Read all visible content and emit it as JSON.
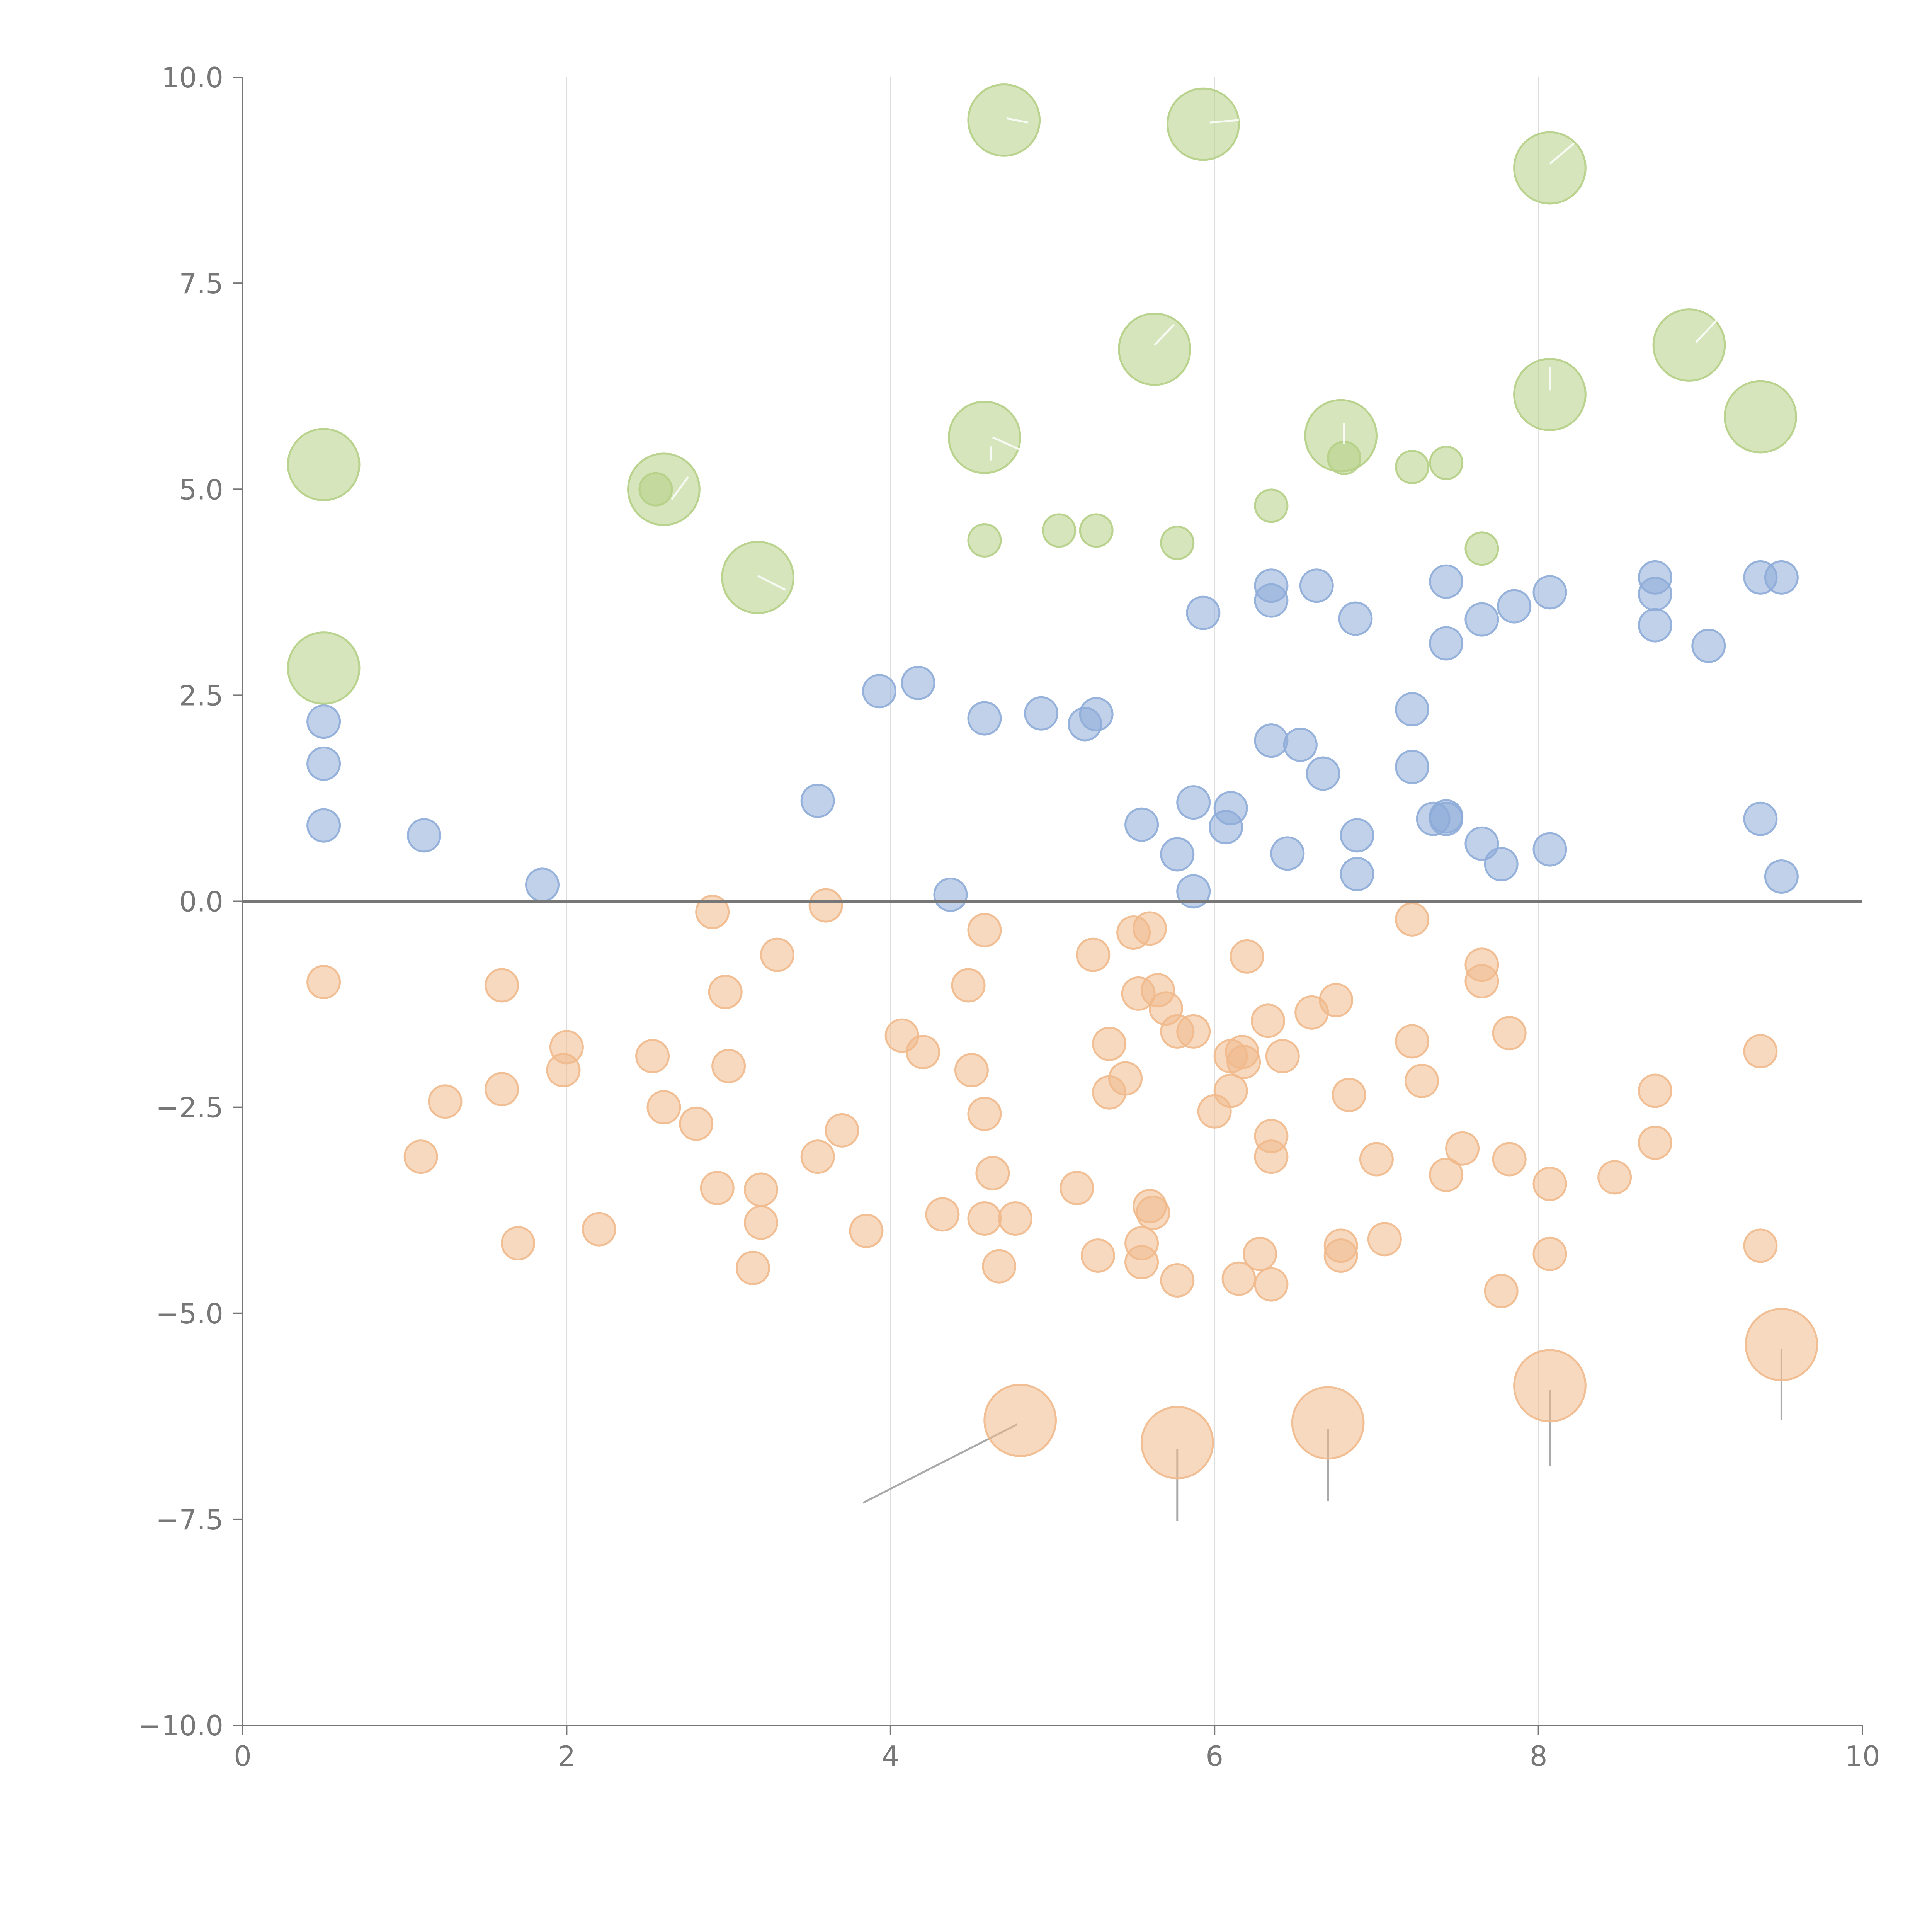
{
  "chart_data": {
    "type": "scatter",
    "title": "",
    "xlabel": "",
    "ylabel": "",
    "xlim": [
      0,
      10
    ],
    "ylim": [
      -10,
      10
    ],
    "x_ticks": [
      0,
      2,
      4,
      6,
      8,
      10
    ],
    "y_ticks": [
      -10,
      -7.5,
      -5,
      -2.5,
      0,
      2.5,
      5,
      7.5,
      10
    ],
    "x_tick_labels": [
      "0",
      "2",
      "4",
      "6",
      "8",
      "10"
    ],
    "y_tick_labels": [
      "−10.0",
      "−7.5",
      "−5.0",
      "−2.5",
      "0.0",
      "2.5",
      "5.0",
      "7.5",
      "10.0"
    ],
    "vertical_gridlines": [
      2,
      4,
      6,
      8
    ],
    "zero_line": 0,
    "bubble_sizes": {
      "small": 1,
      "large": 2.2
    },
    "series": [
      {
        "name": "green",
        "color": "#b5cf85",
        "points": [
          {
            "x": 0.5,
            "y": 5.3,
            "size": "large"
          },
          {
            "x": 0.5,
            "y": 2.83,
            "size": "large"
          },
          {
            "x": 2.6,
            "y": 5.0,
            "size": "large"
          },
          {
            "x": 2.55,
            "y": 5.0,
            "size": "small"
          },
          {
            "x": 3.18,
            "y": 3.93,
            "size": "large"
          },
          {
            "x": 4.7,
            "y": 9.48,
            "size": "large"
          },
          {
            "x": 4.58,
            "y": 5.63,
            "size": "large"
          },
          {
            "x": 4.58,
            "y": 4.38,
            "size": "small"
          },
          {
            "x": 5.04,
            "y": 4.5,
            "size": "small"
          },
          {
            "x": 5.27,
            "y": 4.5,
            "size": "small"
          },
          {
            "x": 5.63,
            "y": 6.7,
            "size": "large"
          },
          {
            "x": 5.77,
            "y": 4.35,
            "size": "small"
          },
          {
            "x": 5.93,
            "y": 9.43,
            "size": "large"
          },
          {
            "x": 6.35,
            "y": 4.8,
            "size": "small"
          },
          {
            "x": 6.78,
            "y": 5.65,
            "size": "large"
          },
          {
            "x": 6.8,
            "y": 5.38,
            "size": "small"
          },
          {
            "x": 7.22,
            "y": 5.27,
            "size": "small"
          },
          {
            "x": 7.43,
            "y": 5.32,
            "size": "small"
          },
          {
            "x": 7.65,
            "y": 4.28,
            "size": "small"
          },
          {
            "x": 8.07,
            "y": 8.9,
            "size": "large"
          },
          {
            "x": 8.07,
            "y": 6.15,
            "size": "large"
          },
          {
            "x": 8.93,
            "y": 6.75,
            "size": "large"
          },
          {
            "x": 9.37,
            "y": 5.88,
            "size": "large"
          }
        ]
      },
      {
        "name": "blue",
        "color": "#8eacd8",
        "points": [
          {
            "x": 0.5,
            "y": 2.18
          },
          {
            "x": 0.5,
            "y": 1.67
          },
          {
            "x": 0.5,
            "y": 0.92
          },
          {
            "x": 1.12,
            "y": 0.8
          },
          {
            "x": 1.85,
            "y": 0.2
          },
          {
            "x": 3.55,
            "y": 1.22
          },
          {
            "x": 3.93,
            "y": 2.55
          },
          {
            "x": 4.17,
            "y": 2.65
          },
          {
            "x": 4.37,
            "y": 0.08
          },
          {
            "x": 4.58,
            "y": 2.22
          },
          {
            "x": 4.93,
            "y": 2.28
          },
          {
            "x": 5.2,
            "y": 2.15
          },
          {
            "x": 5.27,
            "y": 2.27
          },
          {
            "x": 5.55,
            "y": 0.93
          },
          {
            "x": 5.77,
            "y": 0.57
          },
          {
            "x": 5.87,
            "y": 1.2
          },
          {
            "x": 5.87,
            "y": 0.12
          },
          {
            "x": 5.93,
            "y": 3.5
          },
          {
            "x": 6.07,
            "y": 0.9
          },
          {
            "x": 6.1,
            "y": 1.13
          },
          {
            "x": 6.35,
            "y": 3.83
          },
          {
            "x": 6.35,
            "y": 3.65
          },
          {
            "x": 6.35,
            "y": 1.95
          },
          {
            "x": 6.45,
            "y": 0.58
          },
          {
            "x": 6.53,
            "y": 1.9
          },
          {
            "x": 6.63,
            "y": 3.83
          },
          {
            "x": 6.67,
            "y": 1.55
          },
          {
            "x": 6.87,
            "y": 3.43
          },
          {
            "x": 6.88,
            "y": 0.8
          },
          {
            "x": 6.88,
            "y": 0.33
          },
          {
            "x": 7.22,
            "y": 2.33
          },
          {
            "x": 7.22,
            "y": 1.63
          },
          {
            "x": 7.35,
            "y": 1.0
          },
          {
            "x": 7.43,
            "y": 3.88
          },
          {
            "x": 7.43,
            "y": 3.13
          },
          {
            "x": 7.43,
            "y": 1.03
          },
          {
            "x": 7.43,
            "y": 1.0
          },
          {
            "x": 7.65,
            "y": 3.42
          },
          {
            "x": 7.65,
            "y": 0.7
          },
          {
            "x": 7.77,
            "y": 0.45
          },
          {
            "x": 7.85,
            "y": 3.58
          },
          {
            "x": 8.07,
            "y": 3.75
          },
          {
            "x": 8.07,
            "y": 0.63
          },
          {
            "x": 8.72,
            "y": 3.93
          },
          {
            "x": 8.72,
            "y": 3.73
          },
          {
            "x": 8.72,
            "y": 3.35
          },
          {
            "x": 9.05,
            "y": 3.1
          },
          {
            "x": 9.37,
            "y": 3.93
          },
          {
            "x": 9.37,
            "y": 1.0
          },
          {
            "x": 9.5,
            "y": 3.93
          },
          {
            "x": 9.5,
            "y": 0.3
          }
        ]
      },
      {
        "name": "orange",
        "color": "#f0b98c",
        "points": [
          {
            "x": 0.5,
            "y": -0.98
          },
          {
            "x": 1.1,
            "y": -3.1
          },
          {
            "x": 1.25,
            "y": -2.43
          },
          {
            "x": 1.6,
            "y": -1.02
          },
          {
            "x": 1.6,
            "y": -2.28
          },
          {
            "x": 1.7,
            "y": -4.15
          },
          {
            "x": 2.0,
            "y": -1.77
          },
          {
            "x": 1.98,
            "y": -2.05
          },
          {
            "x": 2.2,
            "y": -3.98
          },
          {
            "x": 2.53,
            "y": -1.88
          },
          {
            "x": 2.6,
            "y": -2.5
          },
          {
            "x": 2.8,
            "y": -2.7
          },
          {
            "x": 2.9,
            "y": -0.13
          },
          {
            "x": 2.93,
            "y": -3.48
          },
          {
            "x": 2.98,
            "y": -1.1
          },
          {
            "x": 3.0,
            "y": -2.0
          },
          {
            "x": 3.15,
            "y": -4.45
          },
          {
            "x": 3.2,
            "y": -3.5
          },
          {
            "x": 3.2,
            "y": -3.9
          },
          {
            "x": 3.3,
            "y": -0.65
          },
          {
            "x": 3.55,
            "y": -3.1
          },
          {
            "x": 3.6,
            "y": -0.05
          },
          {
            "x": 3.7,
            "y": -2.78
          },
          {
            "x": 3.85,
            "y": -4.0
          },
          {
            "x": 4.07,
            "y": -1.63
          },
          {
            "x": 4.2,
            "y": -1.83
          },
          {
            "x": 4.32,
            "y": -3.8
          },
          {
            "x": 4.48,
            "y": -1.02
          },
          {
            "x": 4.5,
            "y": -2.05
          },
          {
            "x": 4.58,
            "y": -0.35
          },
          {
            "x": 4.58,
            "y": -2.58
          },
          {
            "x": 4.58,
            "y": -3.85
          },
          {
            "x": 4.63,
            "y": -3.3
          },
          {
            "x": 4.67,
            "y": -4.43
          },
          {
            "x": 4.77,
            "y": -3.85
          },
          {
            "x": 5.15,
            "y": -3.48
          },
          {
            "x": 5.25,
            "y": -0.65
          },
          {
            "x": 5.28,
            "y": -4.3
          },
          {
            "x": 5.35,
            "y": -1.73
          },
          {
            "x": 5.35,
            "y": -2.32
          },
          {
            "x": 5.45,
            "y": -2.15
          },
          {
            "x": 5.5,
            "y": -0.38
          },
          {
            "x": 5.53,
            "y": -1.12
          },
          {
            "x": 5.55,
            "y": -4.15
          },
          {
            "x": 5.55,
            "y": -4.38
          },
          {
            "x": 5.6,
            "y": -0.33
          },
          {
            "x": 5.6,
            "y": -3.7
          },
          {
            "x": 5.62,
            "y": -3.78
          },
          {
            "x": 5.65,
            "y": -1.08
          },
          {
            "x": 5.7,
            "y": -1.3
          },
          {
            "x": 5.77,
            "y": -1.58
          },
          {
            "x": 5.77,
            "y": -4.6
          },
          {
            "x": 5.87,
            "y": -1.58
          },
          {
            "x": 6.0,
            "y": -2.55
          },
          {
            "x": 6.1,
            "y": -1.88
          },
          {
            "x": 6.1,
            "y": -2.3
          },
          {
            "x": 6.15,
            "y": -4.58
          },
          {
            "x": 6.17,
            "y": -1.83
          },
          {
            "x": 6.18,
            "y": -1.95
          },
          {
            "x": 6.2,
            "y": -0.67
          },
          {
            "x": 6.28,
            "y": -4.28
          },
          {
            "x": 6.33,
            "y": -1.45
          },
          {
            "x": 6.35,
            "y": -2.85
          },
          {
            "x": 6.35,
            "y": -3.1
          },
          {
            "x": 6.35,
            "y": -4.65
          },
          {
            "x": 6.42,
            "y": -1.88
          },
          {
            "x": 6.6,
            "y": -1.35
          },
          {
            "x": 6.75,
            "y": -1.2
          },
          {
            "x": 6.78,
            "y": -4.18
          },
          {
            "x": 6.78,
            "y": -4.3
          },
          {
            "x": 6.83,
            "y": -2.35
          },
          {
            "x": 7.0,
            "y": -3.13
          },
          {
            "x": 7.05,
            "y": -4.1
          },
          {
            "x": 7.22,
            "y": -0.22
          },
          {
            "x": 7.22,
            "y": -1.7
          },
          {
            "x": 7.28,
            "y": -2.18
          },
          {
            "x": 7.43,
            "y": -3.32
          },
          {
            "x": 7.53,
            "y": -3.0
          },
          {
            "x": 7.65,
            "y": -0.77
          },
          {
            "x": 7.65,
            "y": -0.97
          },
          {
            "x": 7.77,
            "y": -4.73
          },
          {
            "x": 7.82,
            "y": -1.6
          },
          {
            "x": 7.82,
            "y": -3.13
          },
          {
            "x": 8.07,
            "y": -3.43
          },
          {
            "x": 8.07,
            "y": -4.28
          },
          {
            "x": 8.47,
            "y": -3.35
          },
          {
            "x": 8.72,
            "y": -2.3
          },
          {
            "x": 8.72,
            "y": -2.93
          },
          {
            "x": 9.37,
            "y": -1.82
          },
          {
            "x": 9.37,
            "y": -4.18
          },
          {
            "x": 4.8,
            "y": -6.3,
            "size": "large"
          },
          {
            "x": 5.77,
            "y": -6.57,
            "size": "large"
          },
          {
            "x": 6.7,
            "y": -6.33,
            "size": "large"
          },
          {
            "x": 8.07,
            "y": -5.88,
            "size": "large"
          },
          {
            "x": 9.5,
            "y": -5.38,
            "size": "large"
          }
        ]
      }
    ],
    "leader_lines": [
      {
        "from": [
          4.78,
          -6.35
        ],
        "to": [
          3.83,
          -7.3
        ]
      },
      {
        "from": [
          5.77,
          -6.65
        ],
        "to": [
          5.77,
          -7.52
        ]
      },
      {
        "from": [
          6.7,
          -6.4
        ],
        "to": [
          6.7,
          -7.28
        ]
      },
      {
        "from": [
          8.07,
          -5.93
        ],
        "to": [
          8.07,
          -6.85
        ]
      },
      {
        "from": [
          9.5,
          -5.43
        ],
        "to": [
          9.5,
          -6.3
        ]
      }
    ],
    "inner_marks": [
      {
        "from": [
          2.65,
          4.88
        ],
        "to": [
          2.75,
          5.15
        ]
      },
      {
        "from": [
          3.18,
          3.95
        ],
        "to": [
          3.35,
          3.78
        ]
      },
      {
        "from": [
          4.72,
          9.5
        ],
        "to": [
          4.85,
          9.45
        ]
      },
      {
        "from": [
          4.63,
          5.63
        ],
        "to": [
          4.8,
          5.48
        ]
      },
      {
        "from": [
          4.62,
          5.35
        ],
        "to": [
          4.62,
          5.52
        ]
      },
      {
        "from": [
          5.63,
          6.75
        ],
        "to": [
          5.75,
          7.0
        ]
      },
      {
        "from": [
          5.97,
          9.45
        ],
        "to": [
          6.15,
          9.48
        ]
      },
      {
        "from": [
          6.8,
          5.55
        ],
        "to": [
          6.8,
          5.8
        ]
      },
      {
        "from": [
          8.07,
          8.95
        ],
        "to": [
          8.22,
          9.2
        ]
      },
      {
        "from": [
          8.07,
          6.2
        ],
        "to": [
          8.07,
          6.48
        ]
      },
      {
        "from": [
          8.97,
          6.78
        ],
        "to": [
          9.1,
          7.05
        ]
      }
    ]
  }
}
